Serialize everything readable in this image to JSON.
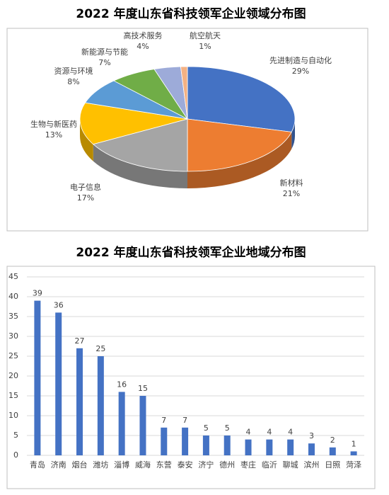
{
  "chart_data": [
    {
      "type": "pie3d",
      "title": "2022 年度山东省科技领军企业领域分布图",
      "categories": [
        "先进制造与自动化",
        "新材料",
        "电子信息",
        "生物与新医药",
        "资源与环境",
        "新能源与节能",
        "高技术服务",
        "航空航天"
      ],
      "values": [
        29,
        21,
        17,
        13,
        8,
        7,
        4,
        1
      ],
      "value_labels": [
        "29%",
        "21%",
        "17%",
        "13%",
        "8%",
        "7%",
        "4%",
        "1%"
      ],
      "colors": [
        "#4472c4",
        "#ed7d31",
        "#a5a5a5",
        "#ffc000",
        "#5b9bd5",
        "#70ad47",
        "#9dabd9",
        "#f4b183"
      ]
    },
    {
      "type": "bar",
      "title": "2022 年度山东省科技领军企业地域分布图",
      "categories": [
        "青岛",
        "济南",
        "烟台",
        "潍坊",
        "淄博",
        "威海",
        "东营",
        "泰安",
        "济宁",
        "德州",
        "枣庄",
        "临沂",
        "聊城",
        "滨州",
        "日照",
        "菏泽"
      ],
      "values": [
        39,
        36,
        27,
        25,
        16,
        15,
        7,
        7,
        5,
        5,
        4,
        4,
        4,
        3,
        2,
        1
      ],
      "color": "#4472c4",
      "ylim": [
        0,
        45
      ],
      "yticks": [
        0,
        5,
        10,
        15,
        20,
        25,
        30,
        35,
        40,
        45
      ],
      "grid": true
    }
  ]
}
